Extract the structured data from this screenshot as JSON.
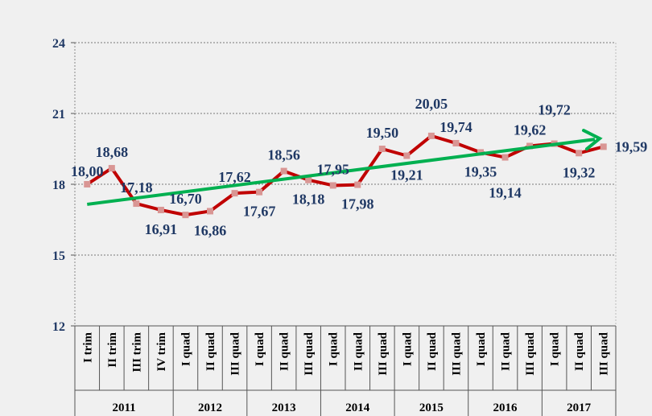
{
  "chart_data": {
    "type": "line",
    "title": "",
    "xlabel": "",
    "ylabel": "",
    "ylim": [
      12,
      24
    ],
    "yticks": [
      "12",
      "15",
      "18",
      "21",
      "24"
    ],
    "grid": true,
    "categories": [
      "I trim",
      "II trim",
      "III trim",
      "IV trim",
      "I quad",
      "II quad",
      "III quad",
      "I quad",
      "II quad",
      "III quad",
      "I quad",
      "II quad",
      "III quad",
      "I quad",
      "II quad",
      "III quad",
      "I quad",
      "II quad",
      "III quad",
      "I quad",
      "II quad",
      "III quad"
    ],
    "years": [
      {
        "label": "2011",
        "span": 4
      },
      {
        "label": "2012",
        "span": 3
      },
      {
        "label": "2013",
        "span": 3
      },
      {
        "label": "2014",
        "span": 3
      },
      {
        "label": "2015",
        "span": 3
      },
      {
        "label": "2016",
        "span": 3
      },
      {
        "label": "2017",
        "span": 3
      }
    ],
    "values": [
      18.0,
      18.68,
      17.18,
      16.91,
      16.7,
      16.86,
      17.62,
      17.67,
      18.56,
      18.18,
      17.95,
      17.98,
      19.5,
      19.21,
      20.05,
      19.74,
      19.35,
      19.14,
      19.62,
      19.72,
      19.32,
      19.59
    ],
    "labels": [
      "18,00",
      "18,68",
      "17,18",
      "16,91",
      "16,70",
      "16,86",
      "17,62",
      "17,67",
      "18,56",
      "18,18",
      "17,95",
      "17,98",
      "19,50",
      "19,21",
      "20,05",
      "19,74",
      "19,35",
      "19,14",
      "19,62",
      "19,72",
      "19,32",
      "19,59"
    ],
    "trend": {
      "start": 17.15,
      "end": 19.94
    },
    "colors": {
      "line": "#c00000",
      "marker": "#d99694",
      "trend": "#00b050",
      "label": "#1f3864",
      "axis": "#1f3864"
    }
  }
}
